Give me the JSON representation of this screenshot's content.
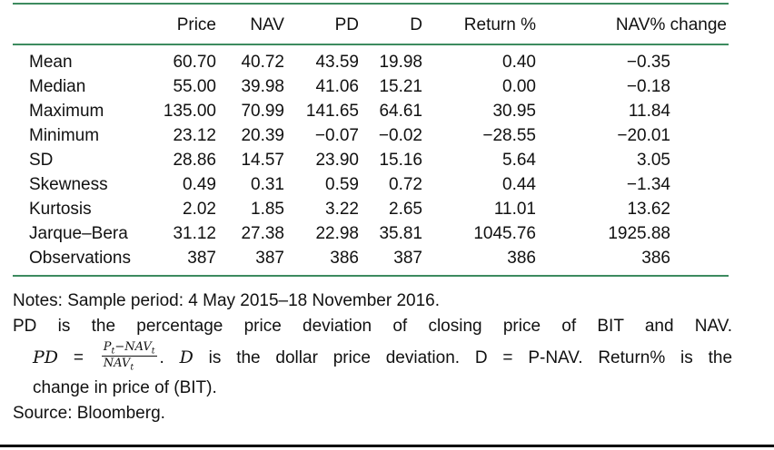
{
  "colors": {
    "rule_green": "#3d8b5f",
    "text": "#111111",
    "bottom_rule": "#000000"
  },
  "table": {
    "columns": [
      "",
      "Price",
      "NAV",
      "PD",
      "D",
      "Return %",
      "NAV% change"
    ],
    "rows": [
      {
        "label": "Mean",
        "values": [
          "60.70",
          "40.72",
          "43.59",
          "19.98",
          "0.40",
          "−0.35"
        ]
      },
      {
        "label": "Median",
        "values": [
          "55.00",
          "39.98",
          "41.06",
          "15.21",
          "0.00",
          "−0.18"
        ]
      },
      {
        "label": "Maximum",
        "values": [
          "135.00",
          "70.99",
          "141.65",
          "64.61",
          "30.95",
          "11.84"
        ]
      },
      {
        "label": "Minimum",
        "values": [
          "23.12",
          "20.39",
          "−0.07",
          "−0.02",
          "−28.55",
          "−20.01"
        ]
      },
      {
        "label": "SD",
        "values": [
          "28.86",
          "14.57",
          "23.90",
          "15.16",
          "5.64",
          "3.05"
        ]
      },
      {
        "label": "Skewness",
        "values": [
          "0.49",
          "0.31",
          "0.59",
          "0.72",
          "0.44",
          "−1.34"
        ]
      },
      {
        "label": "Kurtosis",
        "values": [
          "2.02",
          "1.85",
          "3.22",
          "2.65",
          "11.01",
          "13.62"
        ]
      },
      {
        "label": "Jarque–Bera",
        "values": [
          "31.12",
          "27.38",
          "22.98",
          "35.81",
          "1045.76",
          "1925.88"
        ]
      },
      {
        "label": "Observations",
        "values": [
          "387",
          "387",
          "386",
          "387",
          "386",
          "386"
        ]
      }
    ]
  },
  "notes": {
    "line1": "Notes: Sample period: 4 May 2015–18 November 2016.",
    "line2": "PD is the percentage price deviation of closing price of BIT and NAV.",
    "formula": {
      "lhs": "PD",
      "equals": "=",
      "num_p": "P",
      "num_p_sub": "t",
      "num_minus": "−",
      "num_nav": "NAV",
      "num_nav_sub": "t",
      "den_nav": "NAV",
      "den_nav_sub": "t"
    },
    "after_formula_period": ". ",
    "d_var": "D",
    "line3_rest": " is the dollar price deviation. D = P-NAV. Return% is the",
    "line4": "change in price of (BIT).",
    "source": "Source: Bloomberg."
  }
}
